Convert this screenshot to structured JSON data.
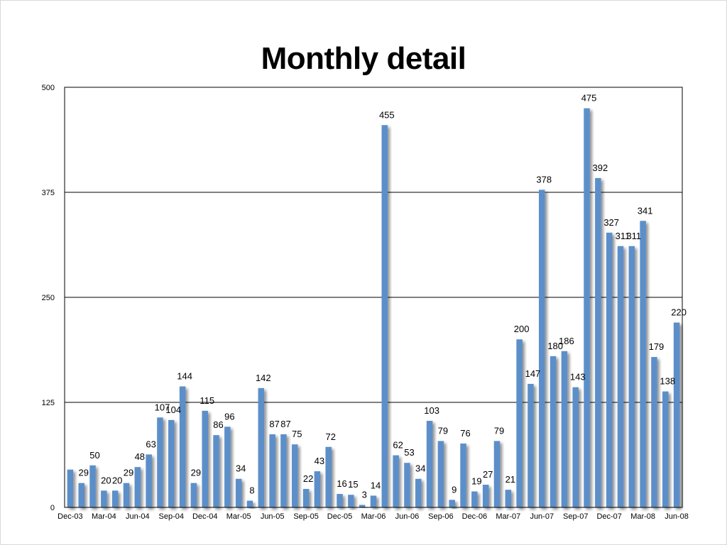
{
  "chart_data": {
    "type": "bar",
    "title": "Monthly detail",
    "xlabel": "",
    "ylabel": "",
    "ylim": [
      0,
      500
    ],
    "yticks": [
      0,
      125,
      250,
      375,
      500
    ],
    "grid": true,
    "legend": "none",
    "bar_color": "#5b8fc9",
    "categories": [
      "Dec-03",
      "Jan-04",
      "Feb-04",
      "Mar-04",
      "Apr-04",
      "May-04",
      "Jun-04",
      "Jul-04",
      "Aug-04",
      "Sep-04",
      "Oct-04",
      "Nov-04",
      "Dec-04",
      "Jan-05",
      "Feb-05",
      "Mar-05",
      "Apr-05",
      "May-05",
      "Jun-05",
      "Jul-05",
      "Aug-05",
      "Sep-05",
      "Oct-05",
      "Nov-05",
      "Dec-05",
      "Jan-06",
      "Feb-06",
      "Mar-06",
      "Apr-06",
      "May-06",
      "Jun-06",
      "Jul-06",
      "Aug-06",
      "Sep-06",
      "Oct-06",
      "Nov-06",
      "Dec-06",
      "Jan-07",
      "Feb-07",
      "Mar-07",
      "Apr-07",
      "May-07",
      "Jun-07",
      "Jul-07",
      "Aug-07",
      "Sep-07",
      "Oct-07",
      "Nov-07",
      "Dec-07",
      "Jan-08",
      "Feb-08",
      "Mar-08",
      "Apr-08",
      "May-08",
      "Jun-08"
    ],
    "x_tick_labels": [
      {
        "index": 0,
        "label": "Dec-03"
      },
      {
        "index": 3,
        "label": "Mar-04"
      },
      {
        "index": 6,
        "label": "Jun-04"
      },
      {
        "index": 9,
        "label": "Sep-04"
      },
      {
        "index": 12,
        "label": "Dec-04"
      },
      {
        "index": 15,
        "label": "Mar-05"
      },
      {
        "index": 18,
        "label": "Jun-05"
      },
      {
        "index": 21,
        "label": "Sep-05"
      },
      {
        "index": 24,
        "label": "Dec-05"
      },
      {
        "index": 27,
        "label": "Mar-06"
      },
      {
        "index": 30,
        "label": "Jun-06"
      },
      {
        "index": 33,
        "label": "Sep-06"
      },
      {
        "index": 36,
        "label": "Dec-06"
      },
      {
        "index": 39,
        "label": "Mar-07"
      },
      {
        "index": 42,
        "label": "Jun-07"
      },
      {
        "index": 45,
        "label": "Sep-07"
      },
      {
        "index": 48,
        "label": "Dec-07"
      },
      {
        "index": 51,
        "label": "Mar-08"
      },
      {
        "index": 54,
        "label": "Jun-08"
      }
    ],
    "values": [
      45,
      29,
      50,
      20,
      20,
      29,
      48,
      63,
      107,
      104,
      144,
      29,
      115,
      86,
      96,
      34,
      8,
      142,
      87,
      87,
      75,
      22,
      43,
      72,
      16,
      15,
      3,
      14,
      455,
      62,
      53,
      34,
      103,
      79,
      9,
      76,
      19,
      27,
      79,
      21,
      200,
      147,
      378,
      180,
      186,
      143,
      475,
      392,
      327,
      311,
      311,
      341,
      179,
      138,
      220
    ],
    "data_labels": [
      "",
      "29",
      "50",
      "20",
      "20",
      "29",
      "48",
      "63",
      "107",
      "104",
      "144",
      "29",
      "115",
      "86",
      "96",
      "34",
      "8",
      "142",
      "87",
      "87",
      "75",
      "22",
      "43",
      "72",
      "16",
      "15",
      "3",
      "14",
      "455",
      "62",
      "53",
      "34",
      "103",
      "79",
      "9",
      "76",
      "19",
      "27",
      "79",
      "21",
      "200",
      "147",
      "378",
      "180",
      "186",
      "143",
      "475",
      "392",
      "327",
      "311",
      "311",
      "341",
      "179",
      "138",
      "220"
    ]
  }
}
